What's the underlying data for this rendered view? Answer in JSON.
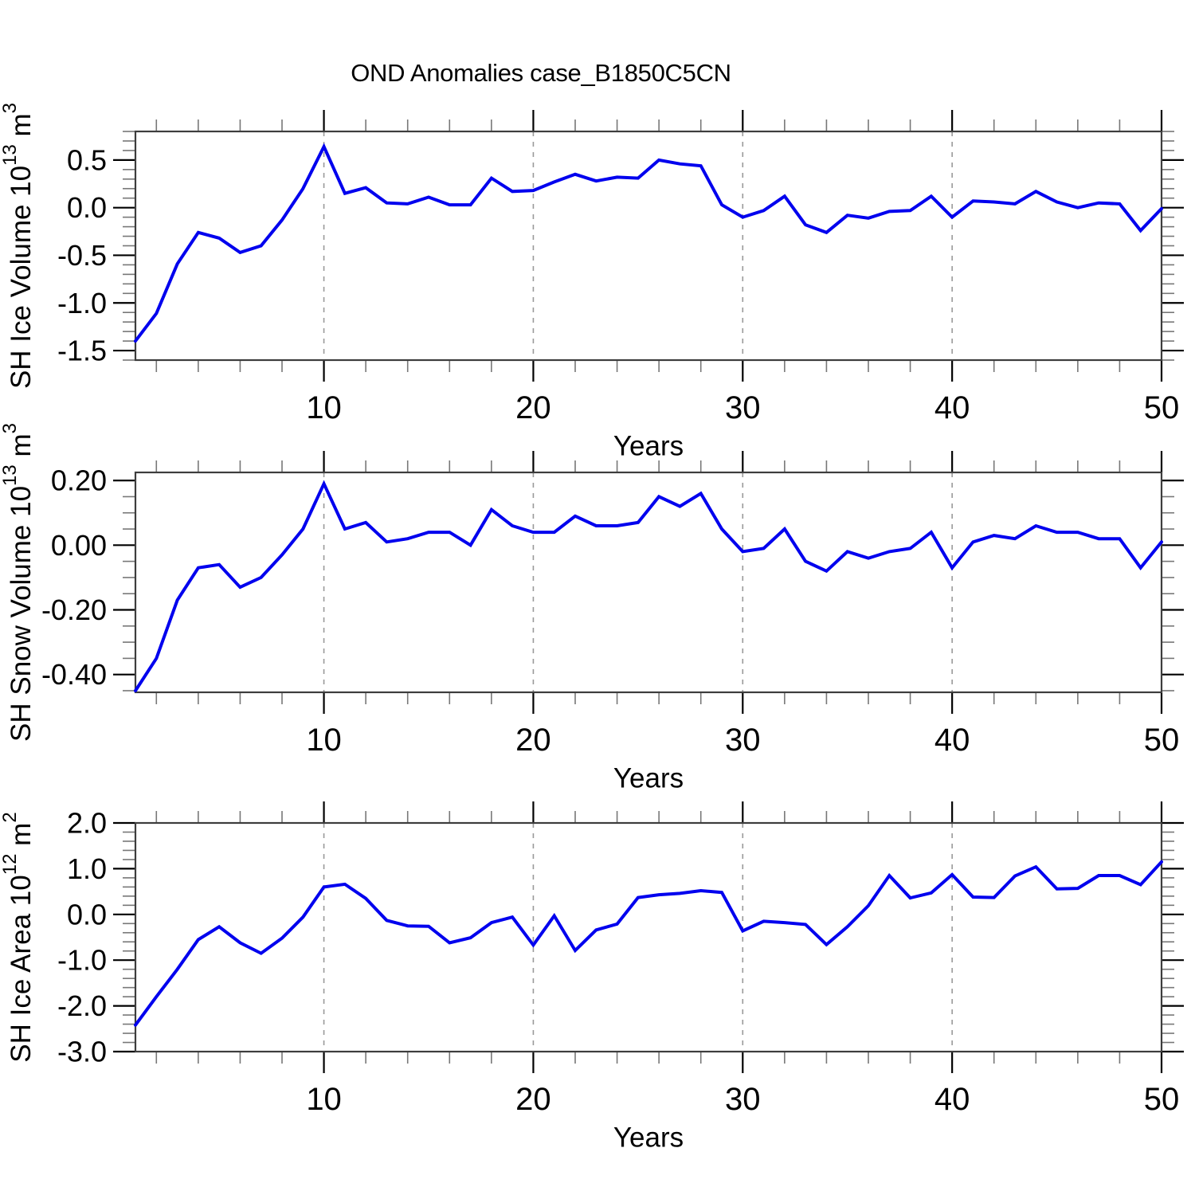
{
  "title": "OND Anomalies case_B1850C5CN",
  "colors": {
    "line": "#0000ee",
    "border": "#3d3d3d",
    "major_tick": "#000000",
    "minor_tick": "#777777",
    "gridline": "#999999",
    "text": "#000000",
    "background": "#ffffff"
  },
  "chart_data": [
    {
      "type": "line",
      "panel": "top",
      "ylabel_main": "SH Ice Volume 10",
      "ylabel_exp": "13",
      "ylabel_unit": " m",
      "ylabel_unit_exp": "3",
      "xlabel": "Years",
      "xlim": [
        1,
        50
      ],
      "xticks": [
        10,
        20,
        30,
        40,
        50
      ],
      "xtick_labels": [
        "10",
        "20",
        "30",
        "40",
        "50"
      ],
      "x_minor_step": 2,
      "grid_x": [
        10,
        20,
        30,
        40
      ],
      "ylim": [
        -1.6,
        0.8
      ],
      "yticks": [
        0.5,
        0.0,
        -0.5,
        -1.0,
        -1.5
      ],
      "ytick_labels": [
        "0.5",
        "0.0",
        "-0.5",
        "-1.0",
        "-1.5"
      ],
      "y_minor_step": 0.1,
      "x": [
        1,
        2,
        3,
        4,
        5,
        6,
        7,
        8,
        9,
        10,
        11,
        12,
        13,
        14,
        15,
        16,
        17,
        18,
        19,
        20,
        21,
        22,
        23,
        24,
        25,
        26,
        27,
        28,
        29,
        30,
        31,
        32,
        33,
        34,
        35,
        36,
        37,
        38,
        39,
        40,
        41,
        42,
        43,
        44,
        45,
        46,
        47,
        48,
        49,
        50
      ],
      "values": [
        -1.4,
        -1.11,
        -0.59,
        -0.26,
        -0.32,
        -0.47,
        -0.4,
        -0.13,
        0.2,
        0.64,
        0.15,
        0.21,
        0.05,
        0.04,
        0.11,
        0.03,
        0.03,
        0.31,
        0.17,
        0.18,
        0.27,
        0.35,
        0.28,
        0.32,
        0.31,
        0.5,
        0.46,
        0.44,
        0.03,
        -0.1,
        -0.03,
        0.12,
        -0.18,
        -0.26,
        -0.08,
        -0.11,
        -0.04,
        -0.03,
        0.12,
        -0.1,
        0.07,
        0.06,
        0.04,
        0.17,
        0.06,
        0.0,
        0.05,
        0.04,
        -0.24,
        -0.01
      ]
    },
    {
      "type": "line",
      "panel": "middle",
      "ylabel_main": "SH Snow Volume 10",
      "ylabel_exp": "13",
      "ylabel_unit": " m",
      "ylabel_unit_exp": "3",
      "xlabel": "Years",
      "xlim": [
        1,
        50
      ],
      "xticks": [
        10,
        20,
        30,
        40,
        50
      ],
      "xtick_labels": [
        "10",
        "20",
        "30",
        "40",
        "50"
      ],
      "x_minor_step": 2,
      "grid_x": [
        10,
        20,
        30,
        40
      ],
      "ylim": [
        -0.455,
        0.225
      ],
      "yticks": [
        0.2,
        0.0,
        -0.2,
        -0.4
      ],
      "ytick_labels": [
        "0.20",
        "0.00",
        "-0.20",
        "-0.40"
      ],
      "y_minor_step": 0.05,
      "x": [
        1,
        2,
        3,
        4,
        5,
        6,
        7,
        8,
        9,
        10,
        11,
        12,
        13,
        14,
        15,
        16,
        17,
        18,
        19,
        20,
        21,
        22,
        23,
        24,
        25,
        26,
        27,
        28,
        29,
        30,
        31,
        32,
        33,
        34,
        35,
        36,
        37,
        38,
        39,
        40,
        41,
        42,
        43,
        44,
        45,
        46,
        47,
        48,
        49,
        50
      ],
      "values": [
        -0.45,
        -0.35,
        -0.17,
        -0.07,
        -0.06,
        -0.13,
        -0.1,
        -0.03,
        0.05,
        0.19,
        0.05,
        0.07,
        0.01,
        0.02,
        0.04,
        0.04,
        0.0,
        0.11,
        0.06,
        0.04,
        0.04,
        0.09,
        0.06,
        0.06,
        0.07,
        0.15,
        0.12,
        0.16,
        0.05,
        -0.02,
        -0.01,
        0.05,
        -0.05,
        -0.08,
        -0.02,
        -0.04,
        -0.02,
        -0.01,
        0.04,
        -0.07,
        0.01,
        0.03,
        0.02,
        0.06,
        0.04,
        0.04,
        0.02,
        0.02,
        -0.07,
        0.01
      ]
    },
    {
      "type": "line",
      "panel": "bottom",
      "ylabel_main": "SH Ice Area 10",
      "ylabel_exp": "12",
      "ylabel_unit": " m",
      "ylabel_unit_exp": "2",
      "xlabel": "Years",
      "xlim": [
        1,
        50
      ],
      "xticks": [
        10,
        20,
        30,
        40,
        50
      ],
      "xtick_labels": [
        "10",
        "20",
        "30",
        "40",
        "50"
      ],
      "x_minor_step": 2,
      "grid_x": [
        10,
        20,
        30,
        40
      ],
      "ylim": [
        -3.0,
        2.0
      ],
      "yticks": [
        2.0,
        1.0,
        0.0,
        -1.0,
        -2.0,
        -3.0
      ],
      "ytick_labels": [
        "2.0",
        "1.0",
        "0.0",
        "-1.0",
        "-2.0",
        "-3.0"
      ],
      "y_minor_step": 0.2,
      "x": [
        1,
        2,
        3,
        4,
        5,
        6,
        7,
        8,
        9,
        10,
        11,
        12,
        13,
        14,
        15,
        16,
        17,
        18,
        19,
        20,
        21,
        22,
        23,
        24,
        25,
        26,
        27,
        28,
        29,
        30,
        31,
        32,
        33,
        34,
        35,
        36,
        37,
        38,
        39,
        40,
        41,
        42,
        43,
        44,
        45,
        46,
        47,
        48,
        49,
        50
      ],
      "values": [
        -2.42,
        -1.8,
        -1.2,
        -0.55,
        -0.27,
        -0.62,
        -0.85,
        -0.52,
        -0.06,
        0.6,
        0.66,
        0.35,
        -0.13,
        -0.25,
        -0.26,
        -0.62,
        -0.51,
        -0.18,
        -0.06,
        -0.67,
        -0.03,
        -0.79,
        -0.34,
        -0.21,
        0.37,
        0.43,
        0.46,
        0.52,
        0.48,
        -0.36,
        -0.15,
        -0.18,
        -0.22,
        -0.66,
        -0.27,
        0.19,
        0.85,
        0.36,
        0.47,
        0.87,
        0.38,
        0.37,
        0.84,
        1.04,
        0.56,
        0.57,
        0.85,
        0.85,
        0.65,
        1.15
      ]
    }
  ]
}
